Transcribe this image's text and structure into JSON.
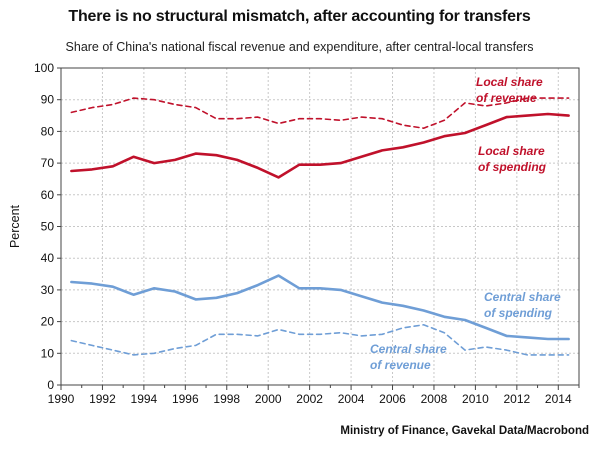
{
  "title": "There is no structural mismatch, after accounting for transfers",
  "subtitle": "Share of China's national fiscal revenue and expenditure, after central-local transfers",
  "source": "Ministry of Finance, Gavekal Data/Macrobond",
  "chart_data": {
    "type": "line",
    "ylabel": "Percent",
    "xlabel": "",
    "ylim": [
      0,
      100
    ],
    "xlim": [
      1990,
      2015
    ],
    "yticks": [
      0,
      10,
      20,
      30,
      40,
      50,
      60,
      70,
      80,
      90,
      100
    ],
    "xticks": [
      1990,
      1992,
      1994,
      1996,
      1998,
      2000,
      2002,
      2004,
      2006,
      2008,
      2010,
      2012,
      2014
    ],
    "grid": true,
    "x": [
      1990.5,
      1991.5,
      1992.5,
      1993.5,
      1994.5,
      1995.5,
      1996.5,
      1997.5,
      1998.5,
      1999.5,
      2000.5,
      2001.5,
      2002.5,
      2003.5,
      2004.5,
      2005.5,
      2006.5,
      2007.5,
      2008.5,
      2009.5,
      2010.5,
      2011.5,
      2012.5,
      2013.5,
      2014.5
    ],
    "series": [
      {
        "name": "Local share of revenue",
        "color": "#c0112b",
        "dash": true,
        "values": [
          86,
          87.5,
          88.5,
          90.5,
          90,
          88.5,
          87.5,
          84,
          84,
          84.5,
          82.5,
          84,
          84,
          83.5,
          84.5,
          84,
          82,
          81,
          83.5,
          89,
          88,
          89,
          90.5,
          90.5,
          90.5
        ]
      },
      {
        "name": "Local share of spending",
        "color": "#c0112b",
        "dash": false,
        "values": [
          67.5,
          68,
          69,
          72,
          70,
          71,
          73,
          72.5,
          71,
          68.5,
          65.5,
          69.5,
          69.5,
          70,
          72,
          74,
          75,
          76.5,
          78.5,
          79.5,
          82,
          84.5,
          85,
          85.5,
          85
        ]
      },
      {
        "name": "Central share of spending",
        "color": "#6f9ed6",
        "dash": false,
        "values": [
          32.5,
          32,
          31,
          28.5,
          30.5,
          29.5,
          27,
          27.5,
          29,
          31.5,
          34.5,
          30.5,
          30.5,
          30,
          28,
          26,
          25,
          23.5,
          21.5,
          20.5,
          18,
          15.5,
          15,
          14.5,
          14.5
        ]
      },
      {
        "name": "Central share of revenue",
        "color": "#6f9ed6",
        "dash": true,
        "values": [
          14,
          12.5,
          11,
          9.5,
          10,
          11.5,
          12.5,
          16,
          16,
          15.5,
          17.5,
          16,
          16,
          16.5,
          15.5,
          16,
          18,
          19,
          16.5,
          11,
          12,
          11,
          9.5,
          9.5,
          9.5
        ]
      }
    ],
    "annotations": [
      {
        "lines": [
          "Local share",
          "of revenue"
        ],
        "series": "Local share of revenue"
      },
      {
        "lines": [
          "Local share",
          "of spending"
        ],
        "series": "Local share of spending"
      },
      {
        "lines": [
          "Central share",
          "of spending"
        ],
        "series": "Central share of spending"
      },
      {
        "lines": [
          "Central share",
          "of revenue"
        ],
        "series": "Central share of revenue"
      }
    ]
  }
}
